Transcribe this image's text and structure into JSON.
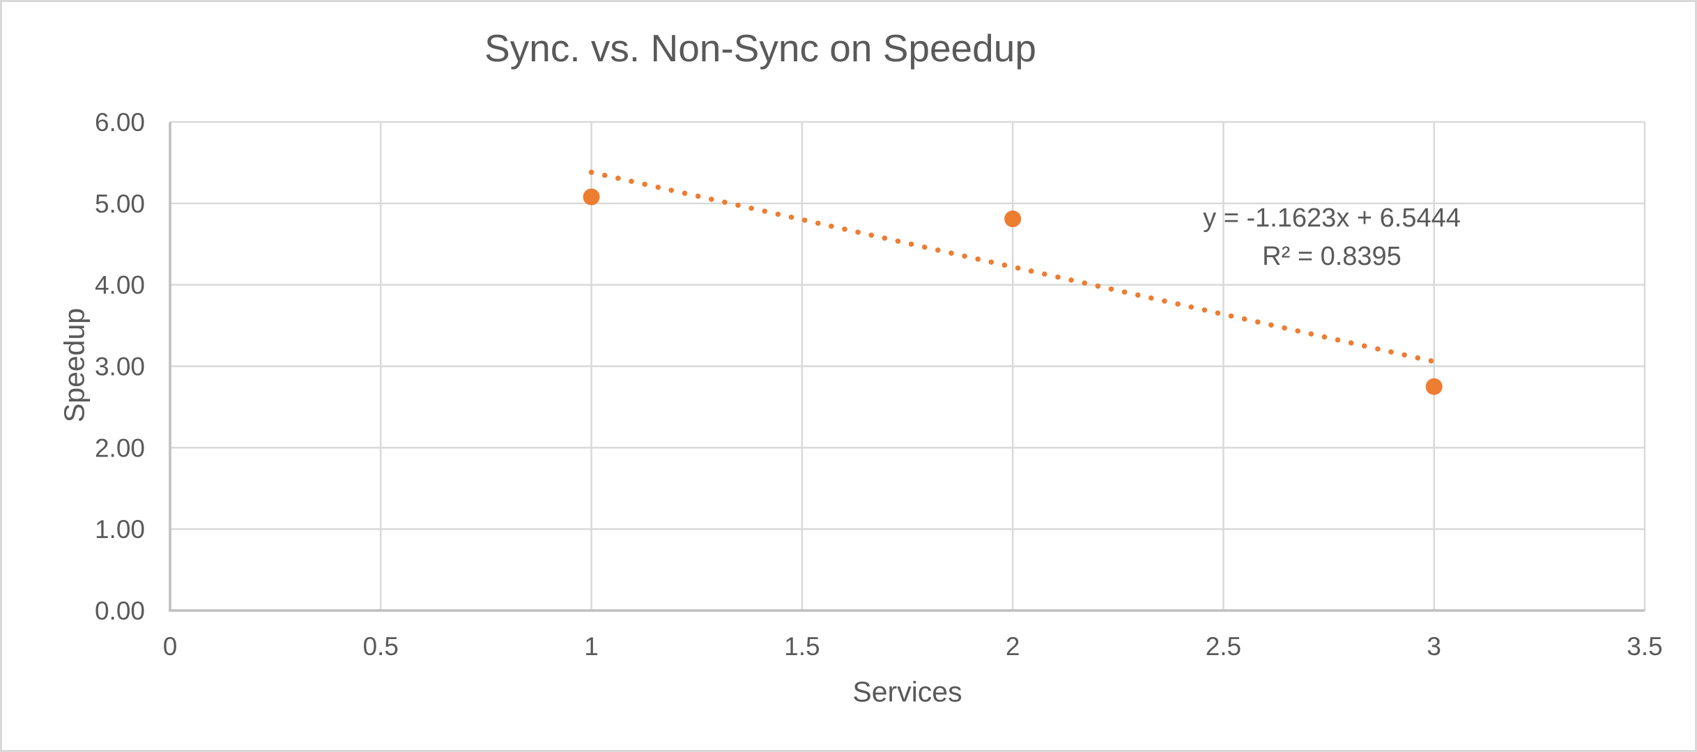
{
  "chart_data": {
    "type": "scatter",
    "title": "Sync. vs. Non-Sync on Speedup",
    "xlabel": "Services",
    "ylabel": "Speedup",
    "xlim": [
      0,
      3.5
    ],
    "ylim": [
      0,
      6
    ],
    "x_ticks": [
      0,
      0.5,
      1,
      1.5,
      2,
      2.5,
      3,
      3.5
    ],
    "x_tick_labels": [
      "0",
      "0.5",
      "1",
      "1.5",
      "2",
      "2.5",
      "3",
      "3.5"
    ],
    "y_ticks": [
      0,
      1,
      2,
      3,
      4,
      5,
      6
    ],
    "y_tick_labels": [
      "0.00",
      "1.00",
      "2.00",
      "3.00",
      "4.00",
      "5.00",
      "6.00"
    ],
    "grid": true,
    "legend": "none",
    "series": [
      {
        "name": "Speedup",
        "x": [
          1,
          2,
          3
        ],
        "y": [
          5.08,
          4.81,
          2.75
        ],
        "color": "#ED7D31",
        "marker": "circle",
        "marker_radius": 12
      }
    ],
    "trendline": {
      "type": "linear",
      "slope": -1.1623,
      "intercept": 6.5444,
      "x_start": 1,
      "x_end": 3,
      "style": "dotted",
      "color": "#ED7D31",
      "equation": "y = -1.1623x + 6.5444",
      "r_squared_label": "R² = 0.8395"
    },
    "colors": {
      "gridline": "#D9D9D9",
      "axis_line": "#BFBFBF",
      "text": "#595959",
      "marker": "#ED7D31",
      "frame_border": "#D9D9D9",
      "background": "#FFFFFF"
    }
  }
}
